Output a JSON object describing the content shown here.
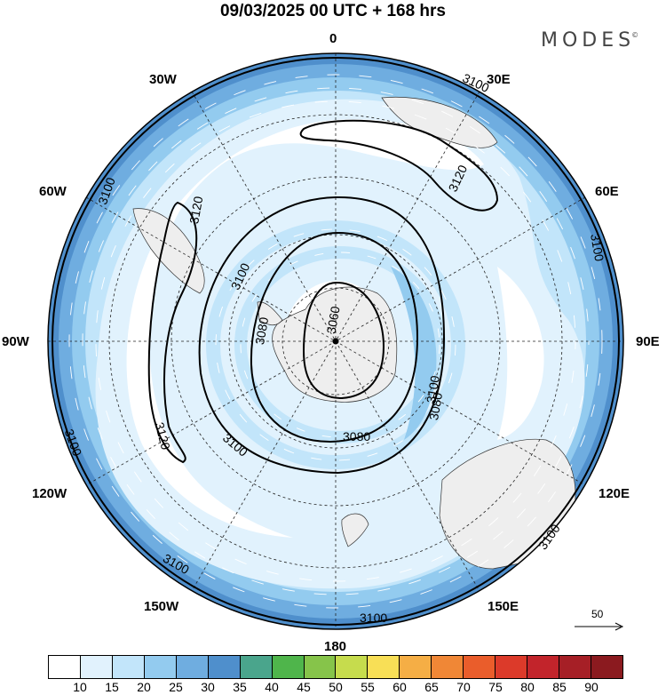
{
  "header": {
    "title": "09/03/2025  00 UTC  + 168 hrs"
  },
  "brand": {
    "name": "MODES",
    "mark": "©"
  },
  "map": {
    "projection": "south polar stereographic",
    "longitude_labels": [
      "0",
      "30E",
      "60E",
      "90E",
      "120E",
      "150E",
      "180",
      "150W",
      "120W",
      "90W",
      "60W",
      "30W"
    ],
    "contour_labels": [
      "3060",
      "3080",
      "3080",
      "3080",
      "3100",
      "3100",
      "3100",
      "3100",
      "3100",
      "3100",
      "3100",
      "3100",
      "3100",
      "3100",
      "3120",
      "3120",
      "3120"
    ],
    "shading_variable": "wind speed",
    "contour_variable": "geopotential height",
    "contour_interval": 20
  },
  "reference_vector": {
    "label": "50"
  },
  "colorbar": {
    "labels": [
      "10",
      "15",
      "20",
      "25",
      "30",
      "35",
      "40",
      "45",
      "50",
      "55",
      "60",
      "65",
      "70",
      "75",
      "80",
      "85",
      "90"
    ],
    "colors": [
      "#ffffff",
      "#e1f2fd",
      "#c2e5fa",
      "#93cbef",
      "#6fade0",
      "#4f8fcc",
      "#4aa58c",
      "#4fb54b",
      "#86c44a",
      "#c6dc4d",
      "#f8df56",
      "#f5ae45",
      "#f08736",
      "#ea5d2b",
      "#dc3a2a",
      "#c2242b",
      "#a61f26",
      "#8b1a1f"
    ]
  }
}
